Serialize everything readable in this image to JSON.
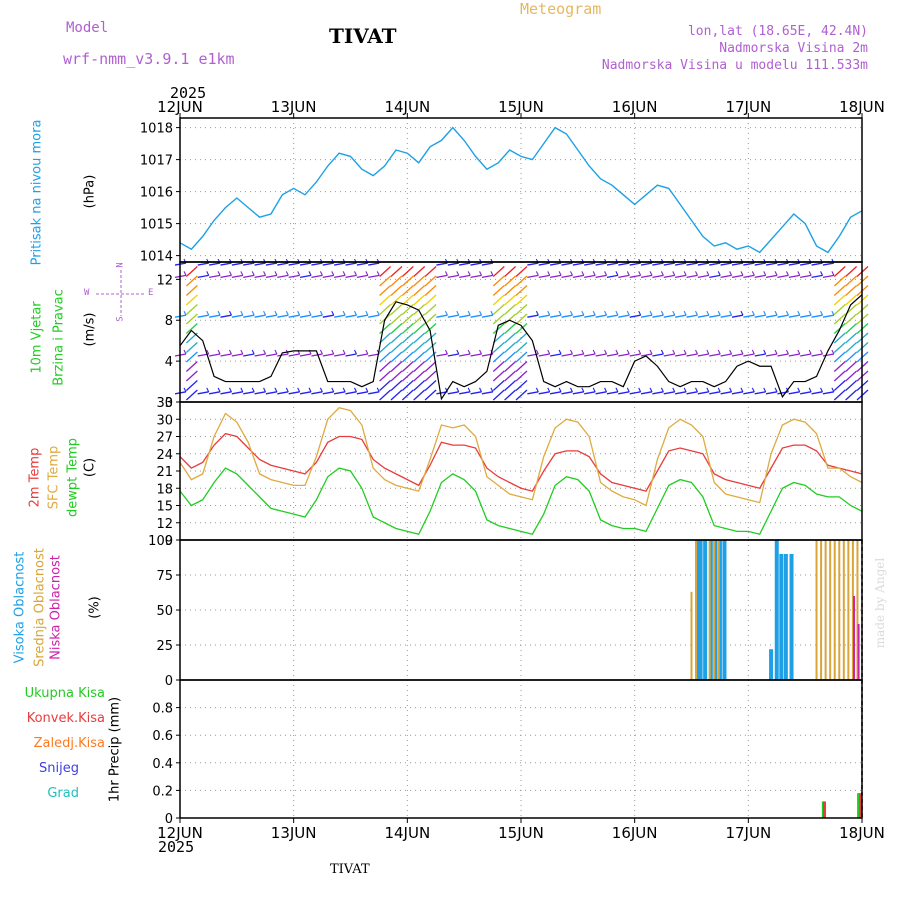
{
  "header": {
    "model_label": "Model",
    "model_name": "wrf-nmm_v3.9.1 e1km",
    "station": "TIVAT",
    "meteogram": "Meteogram",
    "lonlat": "lon,lat (18.65E, 42.4N)",
    "altitude": "Nadmorska Visina 2m",
    "model_altitude": "Nadmorska Visina u modelu 111.533m",
    "year_top": "2025",
    "year_bottom": "2025",
    "footer_station": "TIVAT",
    "credit": "made by Angel"
  },
  "colors": {
    "pressure": "#1ea0e6",
    "wind_speed": "#000000",
    "temp2m": "#e83c3c",
    "sfc_temp": "#dfaa40",
    "dewpt": "#22cc22",
    "cloud_high": "#1ea0e6",
    "cloud_mid": "#d9a53c",
    "cloud_low": "#cc22aa",
    "precip_total": "#22cc22",
    "precip_conv": "#e83c3c",
    "precip_frz": "#ff7a20",
    "snow": "#4040e0",
    "hail": "#20c0c0"
  },
  "x_axis": {
    "ticks": [
      "12JUN",
      "13JUN",
      "14JUN",
      "15JUN",
      "16JUN",
      "17JUN",
      "18JUN"
    ]
  },
  "panels": {
    "pressure": {
      "label": "Pritisak na nivou mora",
      "unit": "(hPa)"
    },
    "wind": {
      "label1": "10m Vjetar",
      "label2": "Brzina i Pravac",
      "unit": "(m/s)",
      "compass_n": "N",
      "compass_s": "S",
      "compass_e": "E",
      "compass_w": "W"
    },
    "temp": {
      "label1": "2m Temp",
      "label2": "SFC Temp",
      "label3": "dewpt Temp",
      "unit": "(C)"
    },
    "cloud": {
      "label1": "Visoka Oblacnost",
      "label2": "Srednja Oblacnost",
      "label3": "Niska Oblacnost",
      "unit": "(%)"
    },
    "precip": {
      "legend": [
        "Ukupna Kisa",
        "Konvek.Kisa",
        "Zaledj.Kisa",
        "Snijeg",
        "Grad"
      ],
      "unit": "1hr Precip (mm)"
    }
  },
  "chart_data": [
    {
      "type": "line",
      "title": "Pritisak na nivou mora",
      "ylabel": "(hPa)",
      "ylim": [
        1013.8,
        1018.3
      ],
      "yticks": [
        1014,
        1015,
        1016,
        1017,
        1018
      ],
      "x_days": [
        0,
        0.1,
        0.2,
        0.3,
        0.4,
        0.5,
        0.6,
        0.7,
        0.8,
        0.9,
        1.0,
        1.1,
        1.2,
        1.3,
        1.4,
        1.5,
        1.6,
        1.7,
        1.8,
        1.9,
        2.0,
        2.1,
        2.2,
        2.3,
        2.4,
        2.5,
        2.6,
        2.7,
        2.8,
        2.9,
        3.0,
        3.1,
        3.2,
        3.3,
        3.4,
        3.5,
        3.6,
        3.7,
        3.8,
        3.9,
        4.0,
        4.1,
        4.2,
        4.3,
        4.4,
        4.5,
        4.6,
        4.7,
        4.8,
        4.9,
        5.0,
        5.1,
        5.2,
        5.3,
        5.4,
        5.5,
        5.6,
        5.7,
        5.8,
        5.9,
        6.0
      ],
      "series": [
        {
          "values": [
            1014.4,
            1014.2,
            1014.6,
            1015.1,
            1015.5,
            1015.8,
            1015.5,
            1015.2,
            1015.3,
            1015.9,
            1016.1,
            1015.9,
            1016.3,
            1016.8,
            1017.2,
            1017.1,
            1016.7,
            1016.5,
            1016.8,
            1017.3,
            1017.2,
            1016.9,
            1017.4,
            1017.6,
            1018.0,
            1017.6,
            1017.1,
            1016.7,
            1016.9,
            1017.3,
            1017.1,
            1017.0,
            1017.5,
            1018.0,
            1017.8,
            1017.3,
            1016.8,
            1016.4,
            1016.2,
            1015.9,
            1015.6,
            1015.9,
            1016.2,
            1016.1,
            1015.6,
            1015.1,
            1014.6,
            1014.3,
            1014.4,
            1014.2,
            1014.3,
            1014.1,
            1014.5,
            1014.9,
            1015.3,
            1015.0,
            1014.3,
            1014.1,
            1014.6,
            1015.2,
            1015.4
          ]
        }
      ]
    },
    {
      "type": "line",
      "title": "10m Vjetar Brzina i Pravac",
      "ylabel": "(m/s)",
      "ylim": [
        0,
        13.7
      ],
      "yticks": [
        0,
        4,
        8,
        12
      ],
      "x_days": [
        0,
        0.1,
        0.2,
        0.3,
        0.4,
        0.5,
        0.6,
        0.7,
        0.8,
        0.9,
        1.0,
        1.1,
        1.2,
        1.3,
        1.4,
        1.5,
        1.6,
        1.7,
        1.8,
        1.9,
        2.0,
        2.1,
        2.2,
        2.3,
        2.4,
        2.5,
        2.6,
        2.7,
        2.8,
        2.9,
        3.0,
        3.1,
        3.2,
        3.3,
        3.4,
        3.5,
        3.6,
        3.7,
        3.8,
        3.9,
        4.0,
        4.1,
        4.2,
        4.3,
        4.4,
        4.5,
        4.6,
        4.7,
        4.8,
        4.9,
        5.0,
        5.1,
        5.2,
        5.3,
        5.4,
        5.5,
        5.6,
        5.7,
        5.8,
        5.9,
        6.0
      ],
      "series": [
        {
          "name": "speed",
          "values": [
            5.5,
            7.0,
            6.0,
            2.5,
            2.0,
            2.0,
            2.0,
            2.0,
            2.5,
            4.8,
            5.0,
            5.0,
            5.0,
            2.0,
            2.0,
            2.0,
            1.5,
            2.0,
            8.0,
            9.8,
            9.5,
            9.0,
            7.0,
            0.3,
            2.0,
            1.5,
            2.0,
            3.0,
            7.5,
            8.0,
            7.5,
            6.0,
            2.0,
            1.5,
            2.0,
            1.5,
            1.5,
            2.0,
            2.0,
            1.5,
            4.0,
            4.5,
            3.5,
            2.0,
            1.5,
            2.0,
            2.0,
            1.5,
            2.0,
            3.5,
            4.0,
            3.5,
            3.5,
            0.5,
            2.0,
            2.0,
            2.5,
            5.0,
            7.0,
            9.5,
            10.5
          ]
        }
      ]
    },
    {
      "type": "line",
      "title": "2m Temp / SFC Temp / dewpt Temp",
      "ylabel": "(C)",
      "ylim": [
        9,
        33
      ],
      "yticks": [
        9,
        12,
        15,
        18,
        21,
        24,
        27,
        30,
        33
      ],
      "x_days": [
        0,
        0.1,
        0.2,
        0.3,
        0.4,
        0.5,
        0.6,
        0.7,
        0.8,
        0.9,
        1.0,
        1.1,
        1.2,
        1.3,
        1.4,
        1.5,
        1.6,
        1.7,
        1.8,
        1.9,
        2.0,
        2.1,
        2.2,
        2.3,
        2.4,
        2.5,
        2.6,
        2.7,
        2.8,
        2.9,
        3.0,
        3.1,
        3.2,
        3.3,
        3.4,
        3.5,
        3.6,
        3.7,
        3.8,
        3.9,
        4.0,
        4.1,
        4.2,
        4.3,
        4.4,
        4.5,
        4.6,
        4.7,
        4.8,
        4.9,
        5.0,
        5.1,
        5.2,
        5.3,
        5.4,
        5.5,
        5.6,
        5.7,
        5.8,
        5.9,
        6.0
      ],
      "series": [
        {
          "name": "2m Temp",
          "values": [
            23.5,
            21.5,
            22.5,
            25.5,
            27.5,
            27.0,
            25.0,
            23.0,
            22.0,
            21.5,
            21.0,
            20.5,
            22.5,
            26.0,
            27.0,
            27.0,
            26.5,
            23.0,
            21.5,
            20.5,
            19.5,
            18.5,
            22.0,
            26.0,
            25.5,
            25.5,
            25.0,
            21.5,
            20.0,
            19.0,
            18.0,
            17.5,
            21.0,
            24.0,
            24.5,
            24.5,
            23.5,
            20.5,
            19.0,
            18.5,
            18.0,
            17.5,
            21.0,
            24.5,
            25.0,
            24.5,
            24.0,
            20.5,
            19.5,
            19.0,
            18.5,
            18.0,
            21.5,
            25.0,
            25.5,
            25.5,
            24.5,
            22.0,
            21.5,
            21.0,
            20.5
          ]
        },
        {
          "name": "SFC Temp",
          "values": [
            22.5,
            19.5,
            20.5,
            27.0,
            31.0,
            29.5,
            26.0,
            20.5,
            19.5,
            19.0,
            18.5,
            18.5,
            23.5,
            30.0,
            32.0,
            31.5,
            29.0,
            21.5,
            19.5,
            18.5,
            18.0,
            17.5,
            23.0,
            29.0,
            28.5,
            29.0,
            27.0,
            20.0,
            18.5,
            17.0,
            16.5,
            16.0,
            23.5,
            28.5,
            30.0,
            29.5,
            27.0,
            19.0,
            17.5,
            16.5,
            16.0,
            15.0,
            23.0,
            28.5,
            30.0,
            29.0,
            27.0,
            19.0,
            17.0,
            16.5,
            16.0,
            15.5,
            24.0,
            29.0,
            30.0,
            29.5,
            27.5,
            21.5,
            21.5,
            20.0,
            19.0
          ]
        },
        {
          "name": "dewpt Temp",
          "values": [
            17.5,
            15.0,
            16.0,
            19.0,
            21.5,
            20.5,
            18.5,
            16.5,
            14.5,
            14.0,
            13.5,
            13.0,
            16.0,
            20.0,
            21.5,
            21.0,
            18.0,
            13.0,
            12.0,
            11.0,
            10.5,
            10.0,
            14.0,
            19.0,
            20.5,
            19.5,
            17.5,
            12.5,
            11.5,
            11.0,
            10.5,
            10.0,
            13.5,
            18.5,
            20.0,
            19.5,
            17.5,
            12.5,
            11.5,
            11.0,
            11.0,
            10.5,
            14.5,
            18.5,
            19.5,
            19.0,
            16.5,
            11.5,
            11.0,
            10.5,
            10.5,
            10.0,
            14.0,
            18.0,
            19.0,
            18.5,
            17.0,
            16.5,
            16.5,
            15.0,
            14.0
          ]
        }
      ]
    },
    {
      "type": "bar",
      "title": "Visoka / Srednja / Niska Oblacnost",
      "ylabel": "(%)",
      "ylim": [
        0,
        100
      ],
      "yticks": [
        0,
        25,
        50,
        75,
        100
      ],
      "series": [
        {
          "name": "Visoka Oblacnost",
          "x_days": [
            4.55,
            4.58,
            4.62,
            4.67,
            4.71,
            4.75,
            4.79,
            5.2,
            5.25,
            5.29,
            5.33,
            5.38
          ],
          "values": [
            100,
            100,
            100,
            100,
            100,
            100,
            100,
            22,
            100,
            90,
            90,
            90
          ]
        },
        {
          "name": "Srednja Oblacnost",
          "x_days": [
            4.5,
            4.54,
            4.66,
            4.7,
            4.74,
            5.6,
            5.64,
            5.68,
            5.72,
            5.76,
            5.8,
            5.84,
            5.88,
            5.92,
            5.96
          ],
          "values": [
            63,
            100,
            100,
            100,
            100,
            100,
            100,
            100,
            100,
            100,
            100,
            100,
            100,
            100,
            100
          ]
        },
        {
          "name": "Niska Oblacnost",
          "x_days": [
            5.93,
            5.97
          ],
          "values": [
            60,
            40
          ]
        }
      ]
    },
    {
      "type": "bar",
      "title": "1hr Precip",
      "ylabel": "1hr Precip (mm)",
      "ylim": [
        0,
        1.0
      ],
      "yticks": [
        0,
        0.2,
        0.4,
        0.6,
        0.8
      ],
      "series": [
        {
          "name": "Ukupna Kisa",
          "x_days": [
            5.66,
            5.97
          ],
          "values": [
            0.12,
            0.18
          ]
        },
        {
          "name": "Konvek.Kisa",
          "x_days": [
            5.67,
            5.99
          ],
          "values": [
            0.12,
            0.18
          ]
        }
      ]
    }
  ]
}
